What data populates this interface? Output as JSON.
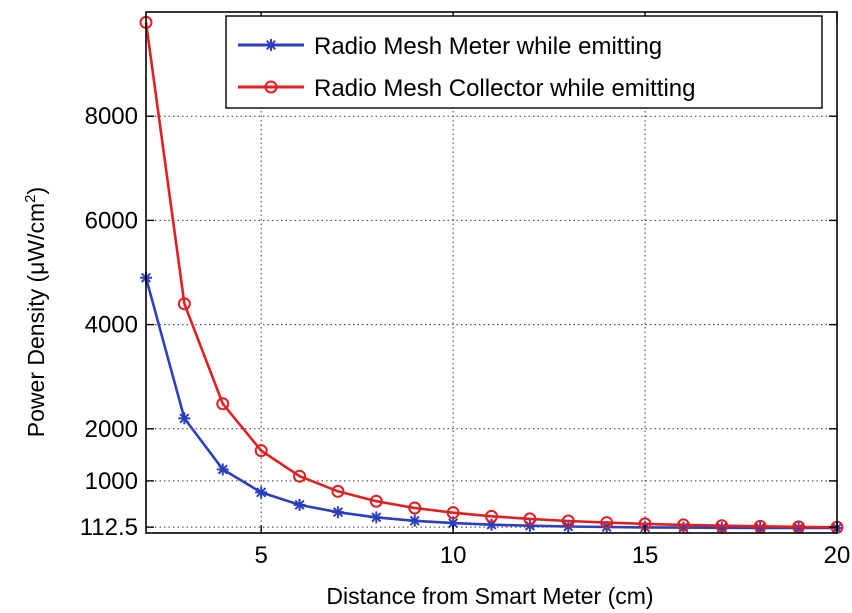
{
  "chart_data": {
    "type": "line",
    "xlabel": "Distance from Smart Meter (cm)",
    "ylabel_main": "Power Density (",
    "ylabel_mu": "μ",
    "ylabel_unit": "W/cm",
    "ylabel_sup": "2",
    "ylabel_close": ")",
    "xlim": [
      2,
      20
    ],
    "ylim": [
      0,
      10000
    ],
    "x_ticks": [
      5,
      10,
      15,
      20
    ],
    "y_ticks": [
      112.5,
      1000,
      2000,
      4000,
      6000,
      8000
    ],
    "y_tick_labels": [
      "112.5",
      "1000",
      "2000",
      "4000",
      "6000",
      "8000"
    ],
    "grid": "dotted",
    "legend_position": "top-right",
    "x": [
      2,
      3,
      4,
      5,
      6,
      7,
      8,
      9,
      10,
      11,
      12,
      13,
      14,
      15,
      16,
      17,
      18,
      19,
      20
    ],
    "series": [
      {
        "name": "Radio Mesh Meter while emitting",
        "color": "#2b3fbf",
        "marker": "star",
        "values": [
          4900,
          2200,
          1220,
          780,
          540,
          400,
          300,
          235,
          190,
          160,
          140,
          125,
          115,
          108,
          103,
          100,
          98,
          97,
          96
        ]
      },
      {
        "name": "Radio Mesh Collector while emitting",
        "color": "#e02020",
        "marker": "circle",
        "values": [
          9800,
          4400,
          2480,
          1580,
          1090,
          800,
          610,
          480,
          390,
          320,
          270,
          230,
          200,
          175,
          155,
          140,
          128,
          118,
          110
        ]
      }
    ]
  }
}
